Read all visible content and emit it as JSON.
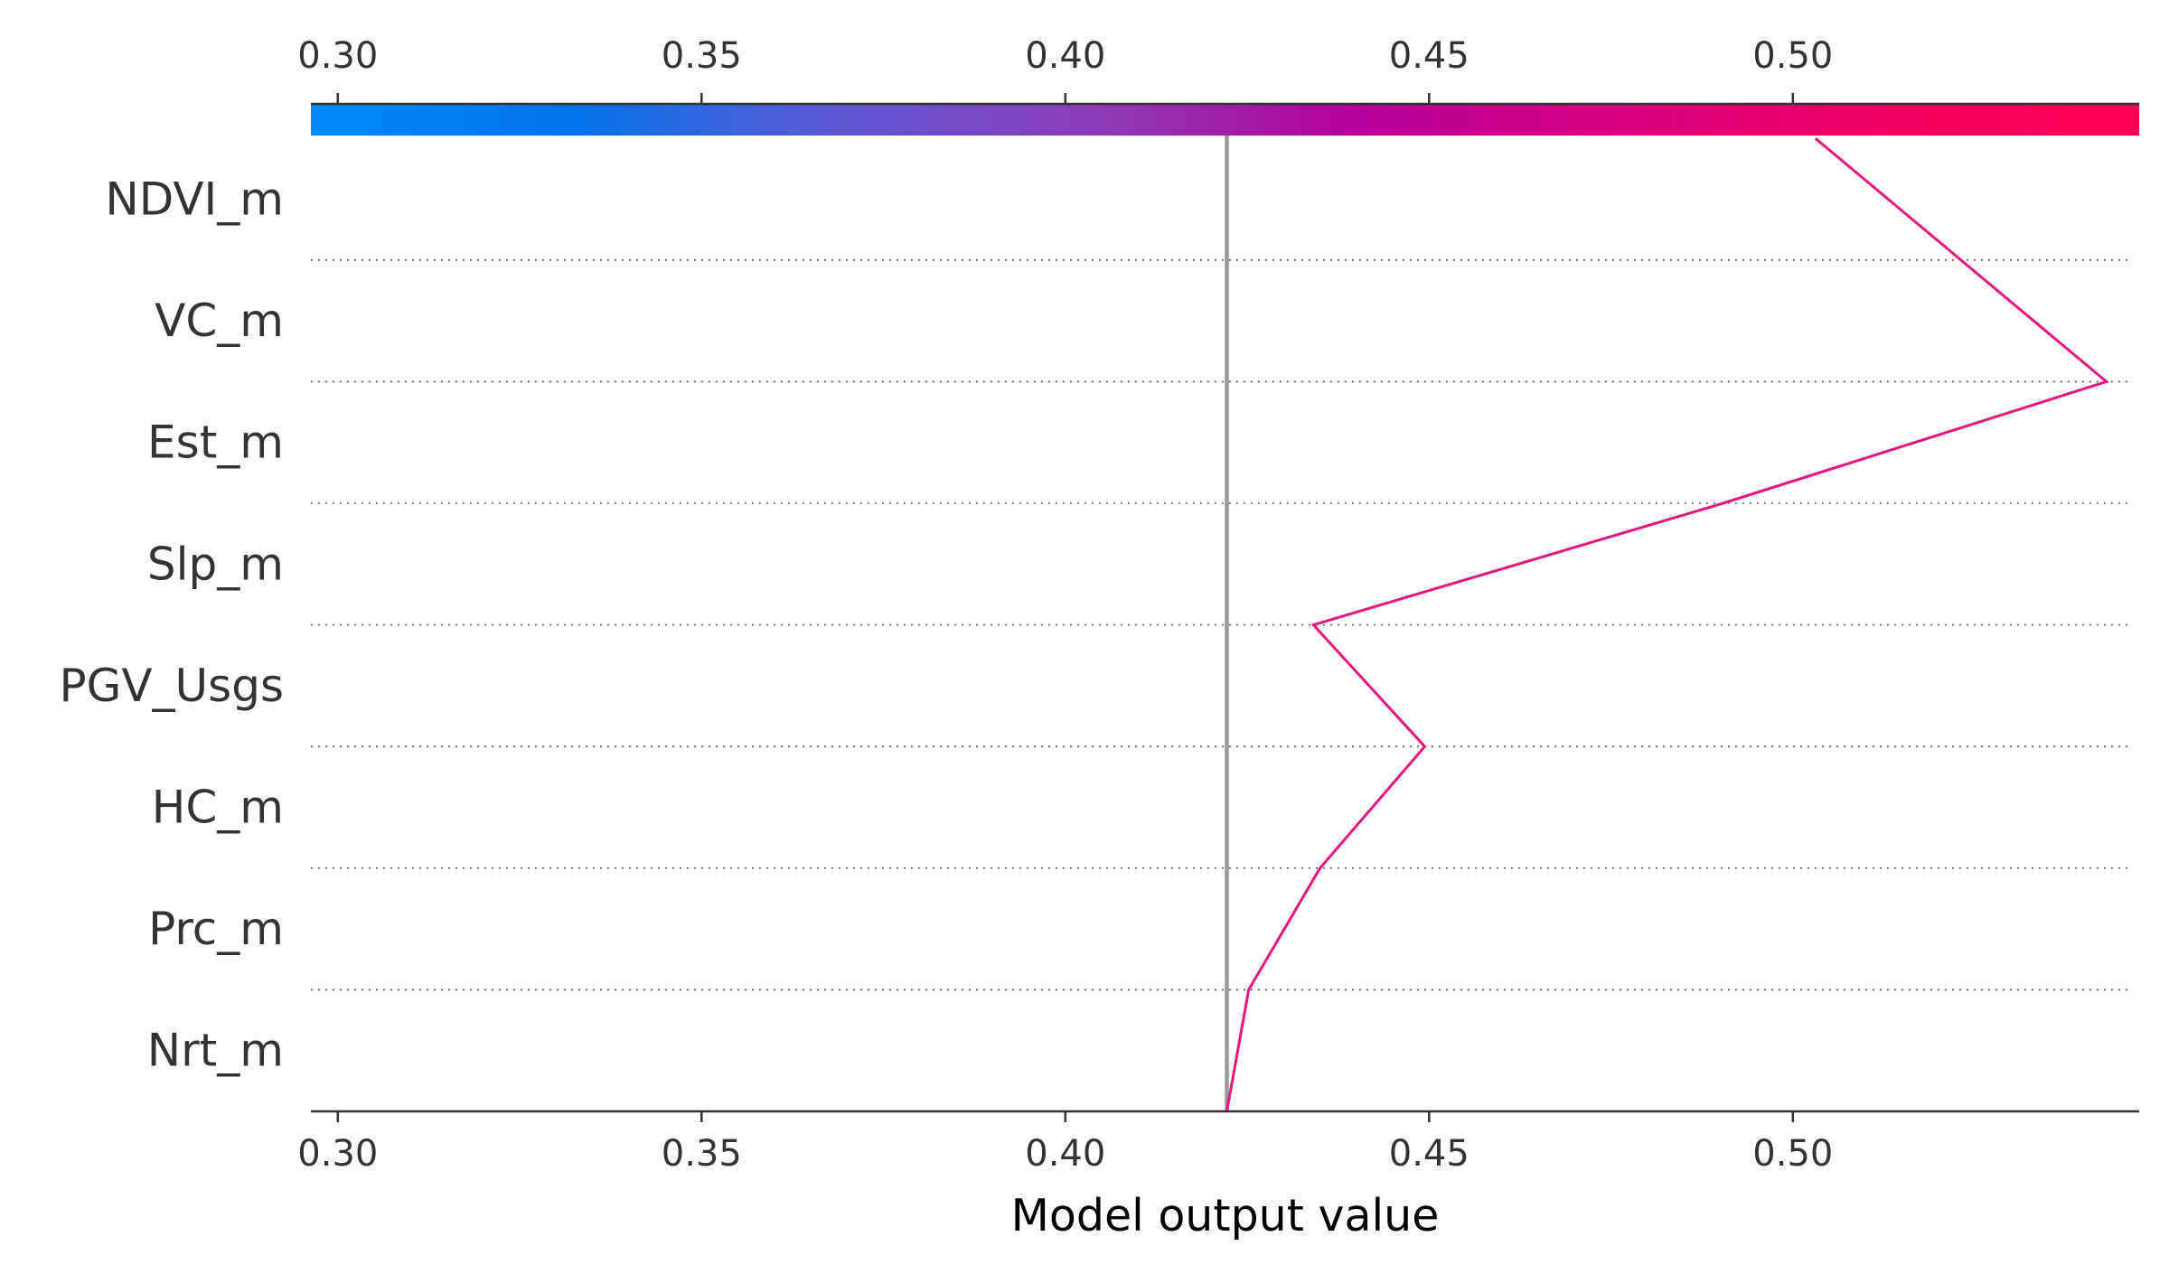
{
  "chart_data": {
    "type": "line",
    "subtype": "shap-decision-plot",
    "title": "",
    "xlabel": "Model output value",
    "ylabel": "",
    "xlim": [
      0.2963,
      0.5476
    ],
    "x_ticks": [
      "0.30",
      "0.35",
      "0.40",
      "0.45",
      "0.50"
    ],
    "x_tick_values": [
      0.3,
      0.35,
      0.4,
      0.45,
      0.5
    ],
    "base_value": 0.4222,
    "features": [
      "NDVI_m",
      "VC_m",
      "Est_m",
      "Slp_m",
      "PGV_Usgs",
      "HC_m",
      "Prc_m",
      "Nrt_m"
    ],
    "series": [
      {
        "values": [
          0.4222,
          0.4252,
          0.435,
          0.4494,
          0.4341,
          0.4904,
          0.5431,
          0.5031
        ],
        "color": "#e5177f"
      }
    ],
    "colorbar": {
      "range": [
        0.2963,
        0.5476
      ],
      "colors": [
        "#008afb",
        "#0073e6",
        "#5f59d6",
        "#8b3cb8",
        "#b5009c",
        "#d6007f",
        "#f00062",
        "#ff0052"
      ]
    },
    "grid": "dotted horizontal separators",
    "colors": {
      "base_line": "#999999",
      "axis": "#333333",
      "text": "#333333"
    }
  }
}
